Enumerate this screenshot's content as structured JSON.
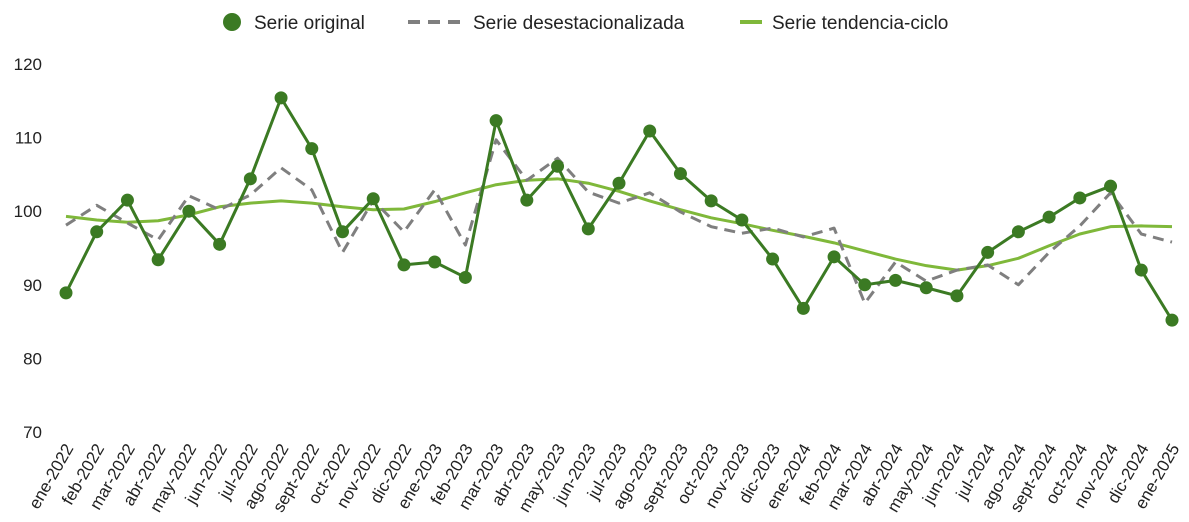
{
  "chart_data": {
    "type": "line",
    "categories": [
      "ene-2022",
      "feb-2022",
      "mar-2022",
      "abr-2022",
      "may-2022",
      "jun-2022",
      "jul-2022",
      "ago-2022",
      "sept-2022",
      "oct-2022",
      "nov-2022",
      "dic-2022",
      "ene-2023",
      "feb-2023",
      "mar-2023",
      "abr-2023",
      "may-2023",
      "jun-2023",
      "jul-2023",
      "ago-2023",
      "sept-2023",
      "oct-2023",
      "nov-2023",
      "dic-2023",
      "ene-2024",
      "feb-2024",
      "mar-2024",
      "abr-2024",
      "may-2024",
      "jun-2024",
      "jul-2024",
      "ago-2024",
      "sept-2024",
      "oct-2024",
      "nov-2024",
      "dic-2024",
      "ene-2025"
    ],
    "series": [
      {
        "name": "Serie original",
        "color": "#3b7a23",
        "style": "markers",
        "values": [
          88.9,
          97.2,
          101.5,
          93.4,
          100.0,
          95.5,
          104.4,
          115.4,
          108.5,
          97.2,
          101.7,
          92.7,
          93.1,
          91.0,
          112.3,
          101.5,
          106.1,
          97.6,
          103.8,
          110.9,
          105.1,
          101.4,
          98.8,
          93.5,
          86.8,
          93.8,
          90.0,
          90.6,
          89.6,
          88.5,
          94.4,
          97.2,
          99.2,
          101.8,
          103.4,
          92.0,
          85.2
        ]
      },
      {
        "name": "Serie desestacionalizada",
        "color": "#7f7f7f",
        "style": "dashed",
        "values": [
          98.1,
          100.8,
          98.4,
          96.1,
          102.1,
          100.2,
          102.2,
          105.9,
          102.9,
          94.4,
          101.5,
          97.2,
          102.9,
          95.4,
          109.7,
          104.2,
          107.2,
          102.6,
          101.1,
          102.5,
          99.9,
          97.9,
          97.0,
          97.7,
          96.5,
          97.7,
          87.5,
          93.1,
          90.5,
          92.0,
          92.7,
          90.0,
          94.4,
          98.0,
          102.5,
          96.9,
          95.8
        ]
      },
      {
        "name": "Serie tendencia-ciclo",
        "color": "#7fb83a",
        "style": "solid",
        "values": [
          99.3,
          98.8,
          98.5,
          98.7,
          99.5,
          100.6,
          101.1,
          101.4,
          101.1,
          100.6,
          100.2,
          100.3,
          101.3,
          102.5,
          103.6,
          104.2,
          104.4,
          103.8,
          102.7,
          101.4,
          100.2,
          99.1,
          98.3,
          97.4,
          96.6,
          95.7,
          94.6,
          93.5,
          92.6,
          92.0,
          92.6,
          93.6,
          95.3,
          96.9,
          97.9,
          98.0,
          97.9
        ]
      }
    ],
    "ylim": [
      70,
      120
    ],
    "yticks": [
      70,
      80,
      90,
      100,
      110,
      120
    ],
    "legend": "top"
  }
}
